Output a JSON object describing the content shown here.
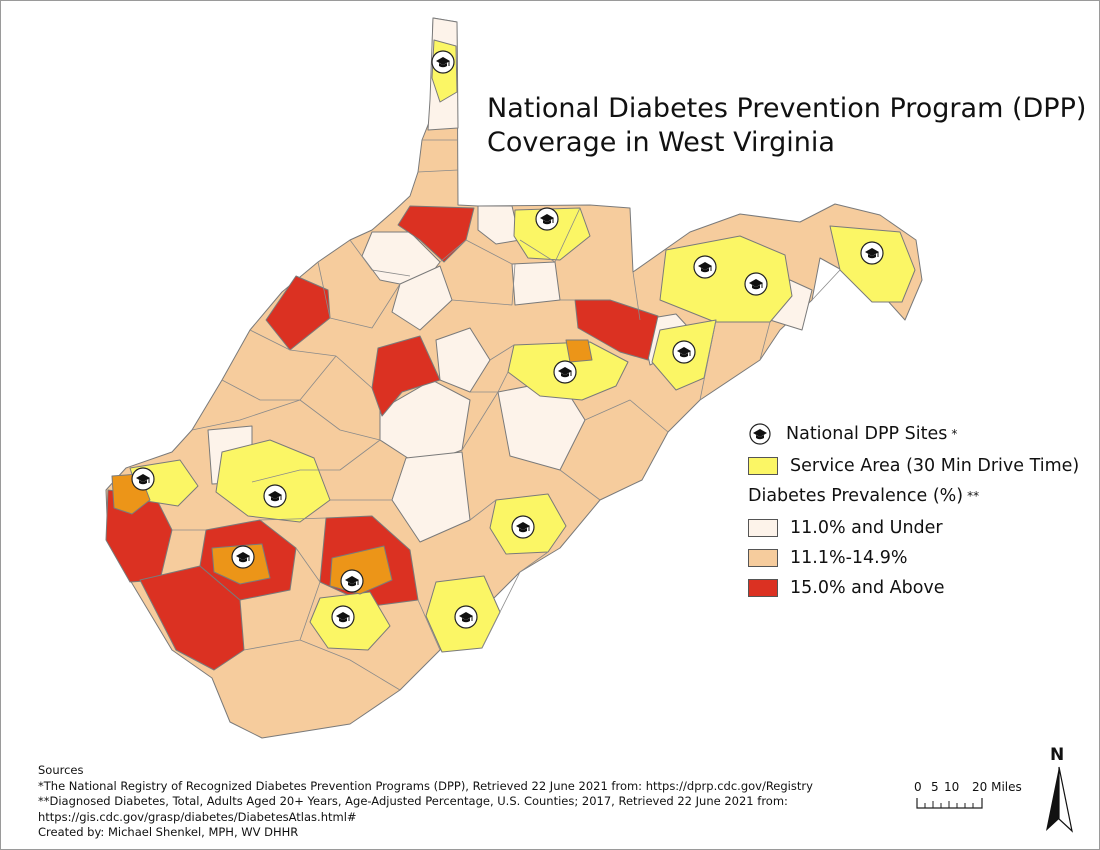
{
  "title": {
    "line1": "National Diabetes Prevention Program (DPP)",
    "line2": "Coverage in West Virginia"
  },
  "legend": {
    "sites_label": "National DPP Sites",
    "sites_mark": "*",
    "service_area_label": "Service Area (30 Min Drive Time)",
    "prevalence_heading": "Diabetes Prevalence (%)",
    "prevalence_mark": "**",
    "classes": [
      {
        "label": "11.0% and Under",
        "color": "#fdf3ea"
      },
      {
        "label": "11.1%-14.9%",
        "color": "#f6cc9d"
      },
      {
        "label": "15.0% and Above",
        "color": "#db3122"
      }
    ],
    "service_area_color": "#fbf665",
    "overlap_color": "#ec9518",
    "site_icon": "graduation-cap-icon"
  },
  "sources": {
    "heading": "Sources",
    "line1": "*The National Registry of Recognized Diabetes Prevention Programs (DPP), Retrieved 22 June 2021 from: https://dprp.cdc.gov/Registry",
    "line2": "**Diagnosed Diabetes, Total, Adults Aged 20+ Years, Age-Adjusted Percentage, U.S. Counties; 2017, Retrieved 22 June 2021 from:",
    "line3": "https://gis.cdc.gov/grasp/diabetes/DiabetesAtlas.html#",
    "line4": "Created by: Michael Shenkel, MPH, WV DHHR"
  },
  "scale_bar": {
    "ticks": [
      "0",
      "5",
      "10",
      "20 Miles"
    ]
  },
  "north_arrow": {
    "label": "N"
  }
}
